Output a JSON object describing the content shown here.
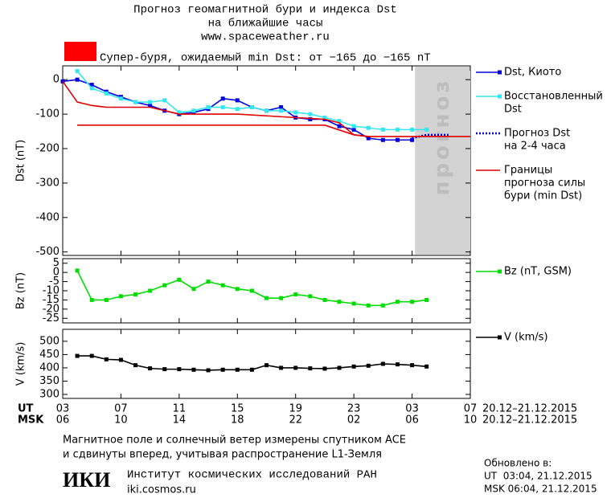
{
  "header": {
    "title_lines": [
      "Прогноз геомагнитной бури и индекса Dst",
      "на ближайшие часы"
    ],
    "url": "www.spaceweather.ru"
  },
  "storm_banner": {
    "text": "Супер-буря, ожидаемый min Dst: от −165 до −165 nT",
    "color": "#ff0000"
  },
  "chart_data": [
    {
      "type": "line",
      "ylabel": "Dst (nT)",
      "ylim": [
        -510,
        40
      ],
      "yticks": [
        0,
        -100,
        -200,
        -300,
        -400,
        -500
      ],
      "forecast": {
        "label": "прогноз",
        "x": [
          24.2,
          28
        ],
        "color": "#d3d3d3"
      },
      "series": [
        {
          "name": [
            "Dst, Киото"
          ],
          "color": "#0000dd",
          "marker": true,
          "x": [
            0,
            1,
            2,
            3,
            4,
            5,
            6,
            7,
            8,
            9,
            10,
            11,
            12,
            13,
            14,
            15,
            16,
            17,
            18,
            19,
            20,
            21,
            22,
            23,
            24
          ],
          "values": [
            -5,
            0,
            -15,
            -35,
            -50,
            -65,
            -75,
            -90,
            -100,
            -95,
            -85,
            -55,
            -60,
            -80,
            -90,
            -80,
            -110,
            -115,
            -115,
            -135,
            -145,
            -170,
            -175,
            -175,
            -175
          ]
        },
        {
          "name": [
            "Восстановленный",
            "Dst"
          ],
          "color": "#33e8f0",
          "marker": true,
          "x": [
            1,
            2,
            3,
            4,
            5,
            6,
            7,
            8,
            9,
            10,
            11,
            12,
            13,
            14,
            15,
            16,
            17,
            18,
            19,
            20,
            21,
            22,
            23,
            24,
            25
          ],
          "values": [
            25,
            -25,
            -40,
            -55,
            -65,
            -65,
            -60,
            -95,
            -90,
            -80,
            -80,
            -85,
            -80,
            -90,
            -90,
            -95,
            -100,
            -110,
            -120,
            -135,
            -140,
            -145,
            -145,
            -145,
            -145
          ]
        },
        {
          "name": [
            "Прогноз Dst",
            "на 2-4 часа"
          ],
          "color": "#0000cc",
          "dash": true,
          "x": [
            24,
            25,
            26.5
          ],
          "values": [
            -170,
            -160,
            -160
          ]
        },
        {
          "name": [
            "Границы",
            "прогноза силы",
            "бури (min Dst)"
          ],
          "color": "#e00000",
          "x": [
            0,
            1,
            2,
            3,
            6,
            8,
            12,
            16,
            18,
            19,
            20,
            21,
            28
          ],
          "values": [
            -5,
            -65,
            -75,
            -80,
            -80,
            -100,
            -100,
            -110,
            -115,
            -125,
            -160,
            -165,
            -165
          ]
        },
        {
          "color": "#e00000",
          "x": [
            1,
            18,
            20,
            21
          ],
          "values": [
            -132,
            -132,
            -160,
            -165
          ]
        }
      ]
    },
    {
      "type": "line",
      "ylabel": "Bz (nT)",
      "ylim": [
        -27.5,
        7.5
      ],
      "yticks": [
        5,
        0,
        -5,
        -10,
        -15,
        -20,
        -25
      ],
      "series": [
        {
          "name": [
            "Bz (nT, GSM)"
          ],
          "color": "#00dd00",
          "marker": true,
          "x": [
            1,
            2,
            3,
            4,
            5,
            6,
            7,
            8,
            9,
            10,
            11,
            12,
            13,
            14,
            15,
            16,
            17,
            18,
            19,
            20,
            21,
            22,
            23,
            24,
            25
          ],
          "values": [
            1,
            -15,
            -15,
            -13,
            -12,
            -10,
            -7,
            -4,
            -9,
            -5,
            -7,
            -9,
            -10,
            -14,
            -14,
            -12,
            -13,
            -15,
            -16,
            -17,
            -18,
            -18,
            -16,
            -16,
            -15
          ]
        }
      ]
    },
    {
      "type": "line",
      "ylabel": "V (km/s)",
      "ylim": [
        285,
        545
      ],
      "yticks": [
        300,
        350,
        400,
        450,
        500
      ],
      "xlim": [
        0,
        28
      ],
      "xticks": [
        {
          "value": 0,
          "label": "03"
        },
        {
          "value": 4,
          "label": "07"
        },
        {
          "value": 8,
          "label": "11"
        },
        {
          "value": 12,
          "label": "15"
        },
        {
          "value": 16,
          "label": "19"
        },
        {
          "value": 20,
          "label": "23"
        },
        {
          "value": 24,
          "label": "03"
        },
        {
          "value": 28,
          "label": "07"
        }
      ],
      "msk_ticks": [
        {
          "value": 0,
          "label": "06"
        },
        {
          "value": 4,
          "label": "10"
        },
        {
          "value": 8,
          "label": "14"
        },
        {
          "value": 12,
          "label": "18"
        },
        {
          "value": 16,
          "label": "22"
        },
        {
          "value": 20,
          "label": "02"
        },
        {
          "value": 24,
          "label": "06"
        },
        {
          "value": 28,
          "label": "10"
        }
      ],
      "ut_label": "UT",
      "msk_label": "MSK",
      "ut_range": "20.12–21.12.2015",
      "msk_range": "20.12–21.12.2015",
      "series": [
        {
          "name": [
            "V (km/s)"
          ],
          "color": "#000000",
          "marker": true,
          "x": [
            1,
            2,
            3,
            4,
            5,
            6,
            7,
            8,
            9,
            10,
            11,
            12,
            13,
            14,
            15,
            16,
            17,
            18,
            19,
            20,
            21,
            22,
            23,
            24,
            25
          ],
          "values": [
            445,
            445,
            432,
            430,
            410,
            398,
            395,
            395,
            393,
            391,
            393,
            393,
            393,
            410,
            400,
            400,
            398,
            397,
            400,
            405,
            408,
            415,
            413,
            410,
            405
          ]
        }
      ]
    }
  ],
  "footer": {
    "note_lines": [
      "Магнитное поле и солнечный ветер измерены спутником ACE",
      "и сдвинуты вперед, учитывая распространение L1-Земля"
    ],
    "logo": "ИКИ",
    "institute": "Институт космических исследований РАН",
    "site": "iki.cosmos.ru",
    "updated_title": "Обновлено в:",
    "updated_ut": "UT  03:04, 21.12.2015",
    "updated_msk": "MSK 06:04, 21.12.2015"
  }
}
